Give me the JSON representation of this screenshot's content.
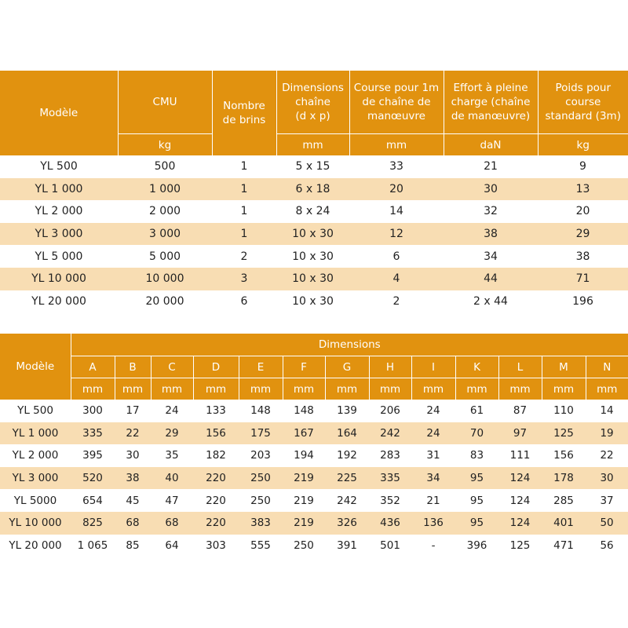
{
  "table1": {
    "headers": {
      "modele": "Modèle",
      "cmu": "CMU",
      "nombre_line1": "Nombre",
      "nombre_line2": "de brins",
      "dim_line1": "Dimensions",
      "dim_line2": "chaîne",
      "dim_line3": "(d x p)",
      "course_line1": "Course pour 1m",
      "course_line2": "de chaîne de",
      "course_line3": "manœuvre",
      "effort_line1": "Effort à pleine",
      "effort_line2": "charge (chaîne",
      "effort_line3": "de manœuvre)",
      "poids_line1": "Poids pour",
      "poids_line2": "course",
      "poids_line3": "standard (3m)"
    },
    "units": {
      "cmu": "kg",
      "dim": "mm",
      "course": "mm",
      "effort": "daN",
      "poids": "kg"
    },
    "rows": [
      [
        "YL 500",
        "500",
        "1",
        "5 x 15",
        "33",
        "21",
        "9"
      ],
      [
        "YL 1 000",
        "1 000",
        "1",
        "6 x 18",
        "20",
        "30",
        "13"
      ],
      [
        "YL 2 000",
        "2 000",
        "1",
        "8 x 24",
        "14",
        "32",
        "20"
      ],
      [
        "YL 3 000",
        "3 000",
        "1",
        "10 x 30",
        "12",
        "38",
        "29"
      ],
      [
        "YL 5 000",
        "5 000",
        "2",
        "10 x 30",
        "6",
        "34",
        "38"
      ],
      [
        "YL 10 000",
        "10 000",
        "3",
        "10 x 30",
        "4",
        "44",
        "71"
      ],
      [
        "YL 20 000",
        "20 000",
        "6",
        "10 x 30",
        "2",
        "2 x 44",
        "196"
      ]
    ]
  },
  "table2": {
    "headers": {
      "modele": "Modèle",
      "dimensions": "Dimensions",
      "letters": [
        "A",
        "B",
        "C",
        "D",
        "E",
        "F",
        "G",
        "H",
        "I",
        "K",
        "L",
        "M",
        "N"
      ],
      "unit": "mm"
    },
    "rows": [
      [
        "YL 500",
        "300",
        "17",
        "24",
        "133",
        "148",
        "148",
        "139",
        "206",
        "24",
        "61",
        "87",
        "110",
        "14"
      ],
      [
        "YL 1 000",
        "335",
        "22",
        "29",
        "156",
        "175",
        "167",
        "164",
        "242",
        "24",
        "70",
        "97",
        "125",
        "19"
      ],
      [
        "YL 2 000",
        "395",
        "30",
        "35",
        "182",
        "203",
        "194",
        "192",
        "283",
        "31",
        "83",
        "111",
        "156",
        "22"
      ],
      [
        "YL 3 000",
        "520",
        "38",
        "40",
        "220",
        "250",
        "219",
        "225",
        "335",
        "34",
        "95",
        "124",
        "178",
        "30"
      ],
      [
        "YL 5000",
        "654",
        "45",
        "47",
        "220",
        "250",
        "219",
        "242",
        "352",
        "21",
        "95",
        "124",
        "285",
        "37"
      ],
      [
        "YL 10 000",
        "825",
        "68",
        "68",
        "220",
        "383",
        "219",
        "326",
        "436",
        "136",
        "95",
        "124",
        "401",
        "50"
      ],
      [
        "YL 20 000",
        "1 065",
        "85",
        "64",
        "303",
        "555",
        "250",
        "391",
        "501",
        "-",
        "396",
        "125",
        "471",
        "56"
      ]
    ]
  }
}
